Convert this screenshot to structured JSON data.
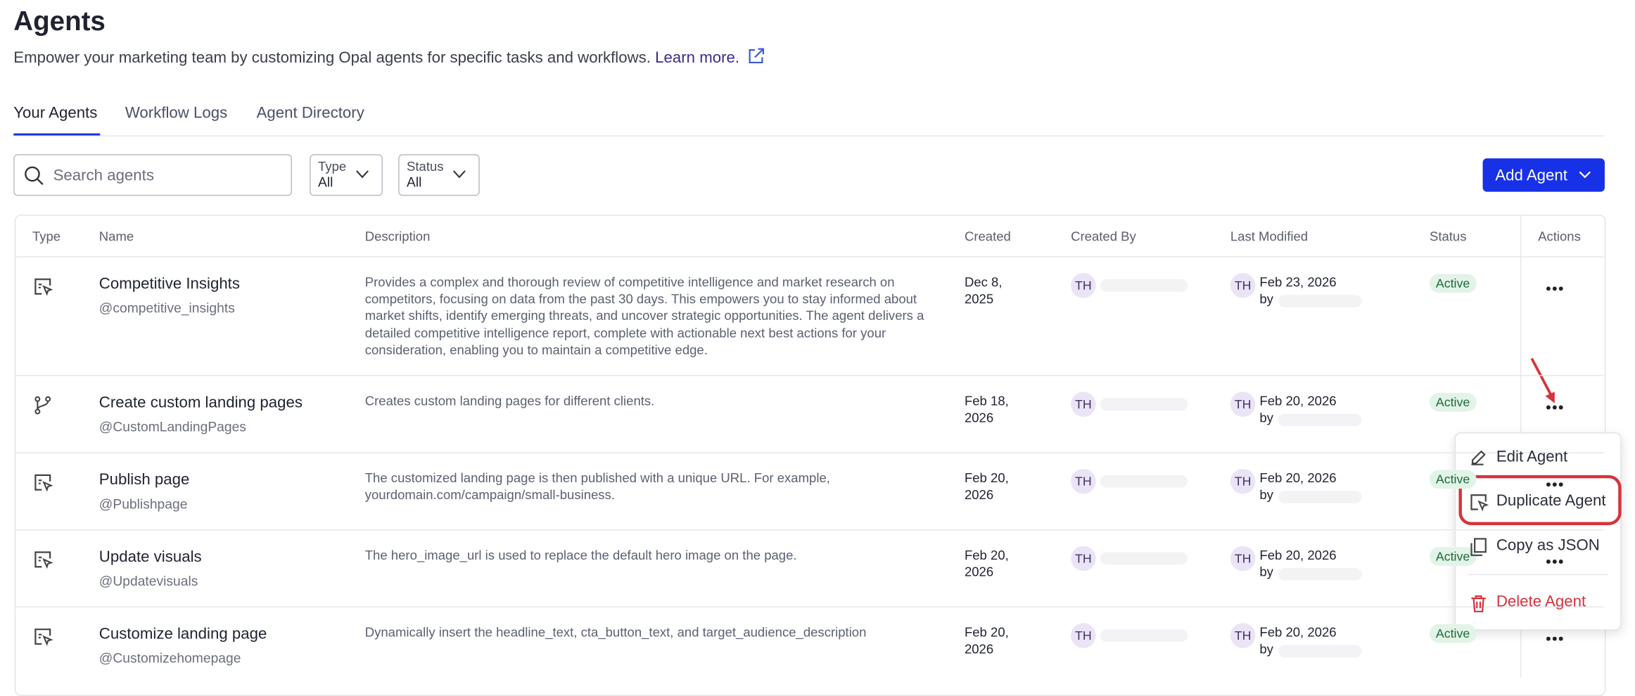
{
  "header": {
    "title": "Agents",
    "description": "Empower your marketing team by customizing Opal agents for specific tasks and workflows.",
    "link": "Learn more."
  },
  "tabs": [
    "Your Agents",
    "Workflow Logs",
    "Agent Directory"
  ],
  "toolbar": {
    "search_placeholder": "Search agents",
    "filters": [
      {
        "label": "Type",
        "value": "All"
      },
      {
        "label": "Status",
        "value": "All"
      }
    ],
    "add_button": "Add Agent"
  },
  "table": {
    "columns": [
      "Type",
      "Name",
      "Description",
      "Created",
      "Created By",
      "Last Modified",
      "Status",
      "Actions"
    ],
    "rows": [
      {
        "name": "Competitive Insights",
        "handle": "@competitive_insights",
        "description": "Provides a complex and thorough review of competitive intelligence and market research on competitors, focusing on data from the past 30 days. This empowers you to stay informed about market shifts, identify emerging threats, and uncover strategic opportunities. The agent delivers a detailed competitive intelligence report, complete with actionable next best actions for your consideration, enabling you to maintain a competitive edge.",
        "created": "Dec 8, 2025",
        "created_by": "TH",
        "modified_by": "TH",
        "modified": "Feb 23, 2026",
        "by": "by",
        "status": "Active"
      },
      {
        "name": "Create custom landing pages",
        "handle": "@CustomLandingPages",
        "description": "Creates custom landing pages for different clients.",
        "created": "Feb 18, 2026",
        "created_by": "TH",
        "modified_by": "TH",
        "modified": "Feb 20, 2026",
        "by": "by",
        "status": "Active"
      },
      {
        "name": "Publish page",
        "handle": "@Publishpage",
        "description": "The customized landing page is then published with a unique URL. For example, yourdomain.com/campaign/small-business.",
        "created": "Feb 20, 2026",
        "created_by": "TH",
        "modified_by": "TH",
        "modified": "Feb 20, 2026",
        "by": "by",
        "status": "Active"
      },
      {
        "name": "Update visuals",
        "handle": "@Updatevisuals",
        "description": "The hero_image_url is used to replace the default hero image on the page.",
        "created": "Feb 20, 2026",
        "created_by": "TH",
        "modified_by": "TH",
        "modified": "Feb 20, 2026",
        "by": "by",
        "status": "Active"
      },
      {
        "name": "Customize landing page",
        "handle": "@Customizehomepage",
        "description": "Dynamically insert the headline_text, cta_button_text, and target_audience_description",
        "created": "Feb 20, 2026",
        "created_by": "TH",
        "modified_by": "TH",
        "modified": "Feb 20, 2026",
        "by": "by",
        "status": "Active"
      }
    ]
  },
  "menu": [
    "Edit Agent",
    "Duplicate Agent",
    "Copy as JSON",
    "Delete Agent"
  ]
}
